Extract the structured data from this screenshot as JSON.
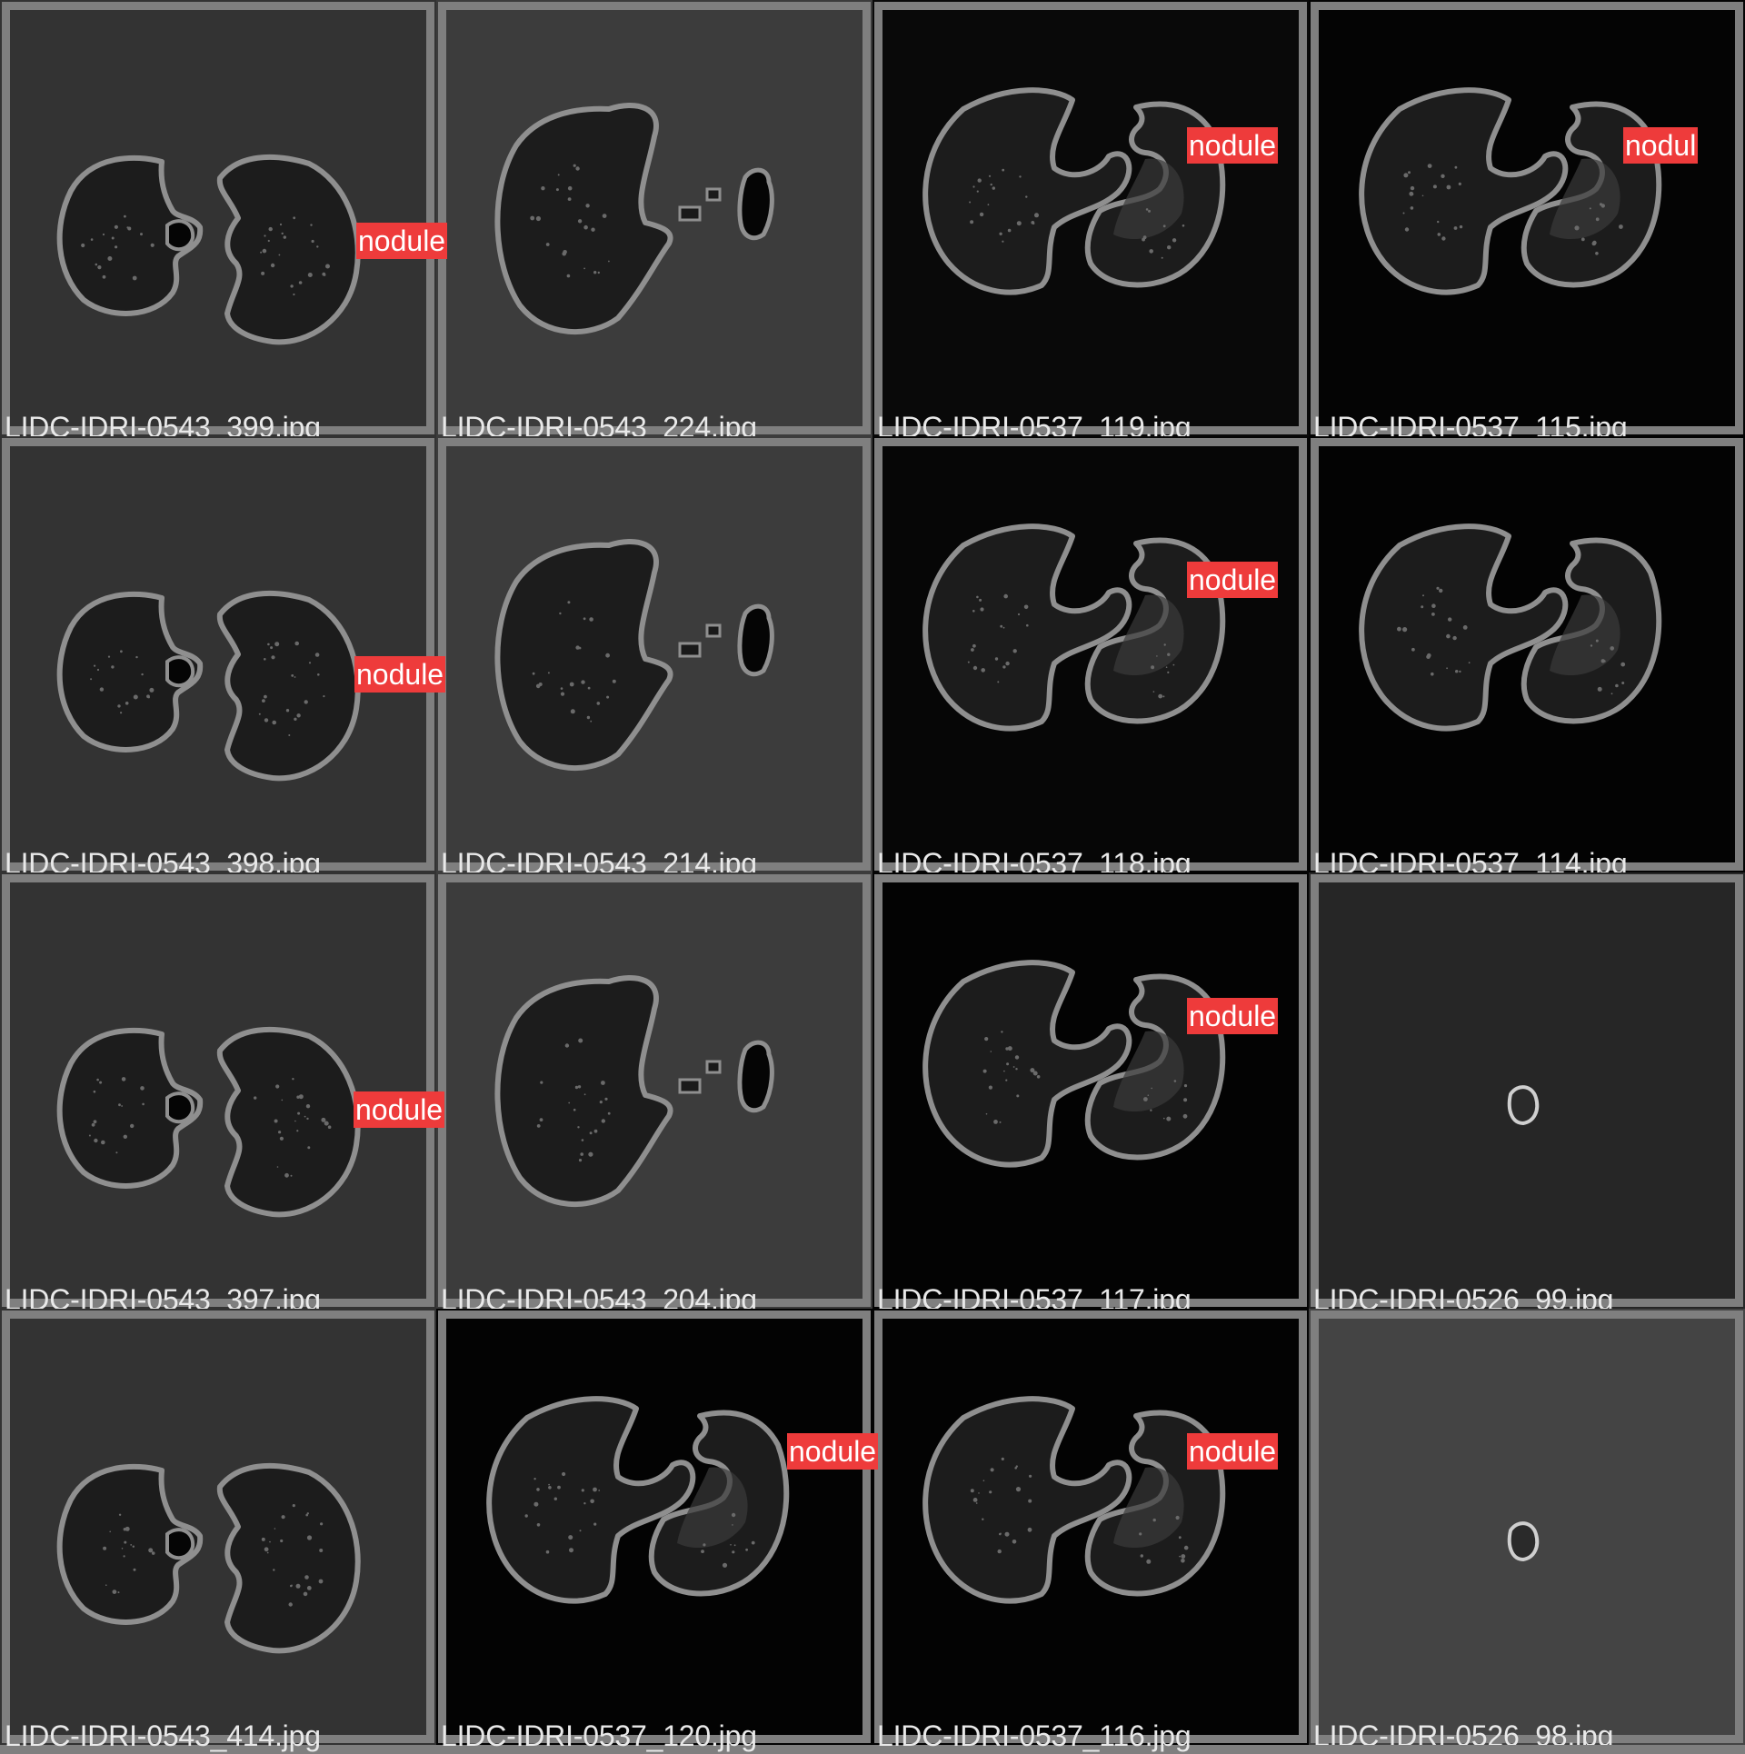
{
  "colors": {
    "grid_line": "#7f7f7f",
    "label_background": "#ee3b3b",
    "label_text": "#ffffff",
    "filename_text": "#e9e9e9"
  },
  "detection_class": "nodule",
  "tiles": [
    {
      "filename": "LIDC-IDRI-0543_399.jpg",
      "label": "nodule",
      "scan": "bilateral-small",
      "background": "#333333"
    },
    {
      "filename": "LIDC-IDRI-0543_224.jpg",
      "label": "",
      "scan": "single-lung-fragments",
      "background": "#3c3c3c"
    },
    {
      "filename": "LIDC-IDRI-0537_119.jpg",
      "label": "nodule",
      "scan": "c-shape-pair",
      "background": "#090909"
    },
    {
      "filename": "LIDC-IDRI-0537_115.jpg",
      "label": "nodul",
      "scan": "c-shape-pair",
      "background": "#040404"
    },
    {
      "filename": "LIDC-IDRI-0543_398.jpg",
      "label": "nodule",
      "scan": "bilateral-small",
      "background": "#333333"
    },
    {
      "filename": "LIDC-IDRI-0543_214.jpg",
      "label": "",
      "scan": "single-lung-fragments",
      "background": "#3c3c3c"
    },
    {
      "filename": "LIDC-IDRI-0537_118.jpg",
      "label": "nodule",
      "scan": "c-shape-pair",
      "background": "#060606"
    },
    {
      "filename": "LIDC-IDRI-0537_114.jpg",
      "label": "",
      "scan": "c-shape-pair",
      "background": "#030303"
    },
    {
      "filename": "LIDC-IDRI-0543_397.jpg",
      "label": "nodule",
      "scan": "bilateral-small",
      "background": "#333333"
    },
    {
      "filename": "LIDC-IDRI-0543_204.jpg",
      "label": "",
      "scan": "single-lung-fragments",
      "background": "#3c3c3c"
    },
    {
      "filename": "LIDC-IDRI-0537_117.jpg",
      "label": "nodule",
      "scan": "c-shape-pair",
      "background": "#030303"
    },
    {
      "filename": "LIDC-IDRI-0526_99.jpg",
      "label": "",
      "scan": "tiny-blob",
      "background": "#262626"
    },
    {
      "filename": "LIDC-IDRI-0543_414.jpg",
      "label": "",
      "scan": "bilateral-small",
      "background": "#333333"
    },
    {
      "filename": "LIDC-IDRI-0537_120.jpg",
      "label": "nodule",
      "scan": "c-shape-pair",
      "background": "#030303"
    },
    {
      "filename": "LIDC-IDRI-0537_116.jpg",
      "label": "nodule",
      "scan": "c-shape-pair",
      "background": "#030303"
    },
    {
      "filename": "LIDC-IDRI-0526_98.jpg",
      "label": "",
      "scan": "tiny-blob",
      "background": "#444444"
    }
  ]
}
